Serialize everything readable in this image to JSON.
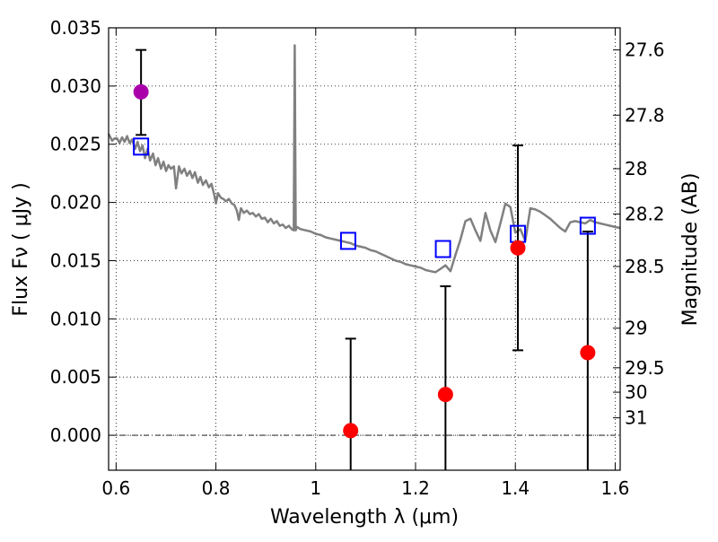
{
  "chart_data": {
    "type": "scatter",
    "xlabel": "Wavelength  λ (μm)",
    "ylabel": "Flux  Fν  ( μJy )",
    "ylabel_right": "Magnitude (AB)",
    "xlim": [
      0.585,
      1.61
    ],
    "ylim": [
      -0.003,
      0.035
    ],
    "grid": true,
    "x_ticks": [
      {
        "value": 0.6,
        "label": "0.6"
      },
      {
        "value": 0.8,
        "label": "0.8"
      },
      {
        "value": 1.0,
        "label": "1"
      },
      {
        "value": 1.2,
        "label": "1.2"
      },
      {
        "value": 1.4,
        "label": "1.4"
      },
      {
        "value": 1.6,
        "label": "1.6"
      }
    ],
    "y_ticks": [
      {
        "value": 0.0,
        "label": "0.000"
      },
      {
        "value": 0.005,
        "label": "0.005"
      },
      {
        "value": 0.01,
        "label": "0.010"
      },
      {
        "value": 0.015,
        "label": "0.015"
      },
      {
        "value": 0.02,
        "label": "0.020"
      },
      {
        "value": 0.025,
        "label": "0.025"
      },
      {
        "value": 0.03,
        "label": "0.030"
      },
      {
        "value": 0.035,
        "label": "0.035"
      }
    ],
    "right_ticks": [
      {
        "flux": 0.0331,
        "label": "27.6"
      },
      {
        "flux": 0.0275,
        "label": "27.8"
      },
      {
        "flux": 0.0229,
        "label": "28"
      },
      {
        "flux": 0.019,
        "label": "28.2"
      },
      {
        "flux": 0.0145,
        "label": "28.5"
      },
      {
        "flux": 0.0092,
        "label": "29"
      },
      {
        "flux": 0.0058,
        "label": "29.5"
      },
      {
        "flux": 0.0037,
        "label": "30"
      },
      {
        "flux": 0.0015,
        "label": "31"
      }
    ],
    "series": [
      {
        "type": "line",
        "color": "#808080",
        "points": [
          [
            0.585,
            0.0259
          ],
          [
            0.592,
            0.0253
          ],
          [
            0.597,
            0.0255
          ],
          [
            0.602,
            0.0255
          ],
          [
            0.607,
            0.0251
          ],
          [
            0.612,
            0.0256
          ],
          [
            0.617,
            0.0252
          ],
          [
            0.622,
            0.0257
          ],
          [
            0.627,
            0.0251
          ],
          [
            0.632,
            0.0254
          ],
          [
            0.638,
            0.0246
          ],
          [
            0.643,
            0.0252
          ],
          [
            0.648,
            0.0244
          ],
          [
            0.653,
            0.0249
          ],
          [
            0.658,
            0.0238
          ],
          [
            0.663,
            0.0246
          ],
          [
            0.668,
            0.0236
          ],
          [
            0.674,
            0.0242
          ],
          [
            0.679,
            0.0232
          ],
          [
            0.684,
            0.0238
          ],
          [
            0.69,
            0.0229
          ],
          [
            0.695,
            0.0235
          ],
          [
            0.7,
            0.0227
          ],
          [
            0.705,
            0.0232
          ],
          [
            0.71,
            0.0229
          ],
          [
            0.716,
            0.0231
          ],
          [
            0.72,
            0.0212
          ],
          [
            0.726,
            0.0231
          ],
          [
            0.731,
            0.0225
          ],
          [
            0.737,
            0.0229
          ],
          [
            0.742,
            0.0223
          ],
          [
            0.748,
            0.0227
          ],
          [
            0.753,
            0.0221
          ],
          [
            0.758,
            0.0226
          ],
          [
            0.764,
            0.0217
          ],
          [
            0.769,
            0.0222
          ],
          [
            0.774,
            0.0215
          ],
          [
            0.78,
            0.0219
          ],
          [
            0.786,
            0.0213
          ],
          [
            0.791,
            0.0216
          ],
          [
            0.797,
            0.0206
          ],
          [
            0.8,
            0.0199
          ],
          [
            0.804,
            0.0208
          ],
          [
            0.81,
            0.0204
          ],
          [
            0.815,
            0.0203
          ],
          [
            0.82,
            0.0201
          ],
          [
            0.826,
            0.0203
          ],
          [
            0.832,
            0.0199
          ],
          [
            0.837,
            0.0198
          ],
          [
            0.842,
            0.0193
          ],
          [
            0.846,
            0.0185
          ],
          [
            0.85,
            0.0195
          ],
          [
            0.856,
            0.0191
          ],
          [
            0.862,
            0.0193
          ],
          [
            0.868,
            0.019
          ],
          [
            0.874,
            0.0191
          ],
          [
            0.88,
            0.0188
          ],
          [
            0.886,
            0.019
          ],
          [
            0.892,
            0.0186
          ],
          [
            0.898,
            0.0187
          ],
          [
            0.904,
            0.0183
          ],
          [
            0.91,
            0.0186
          ],
          [
            0.916,
            0.0182
          ],
          [
            0.922,
            0.0184
          ],
          [
            0.928,
            0.018
          ],
          [
            0.934,
            0.0181
          ],
          [
            0.94,
            0.0178
          ],
          [
            0.946,
            0.018
          ],
          [
            0.952,
            0.0177
          ],
          [
            0.956,
            0.0176
          ],
          [
            0.958,
            0.0335
          ],
          [
            0.96,
            0.0176
          ],
          [
            0.962,
            0.0179
          ],
          [
            0.97,
            0.0177
          ],
          [
            0.98,
            0.0176
          ],
          [
            0.99,
            0.0175
          ],
          [
            1.0,
            0.0173
          ],
          [
            1.01,
            0.0172
          ],
          [
            1.02,
            0.017
          ],
          [
            1.03,
            0.0169
          ],
          [
            1.04,
            0.0168
          ],
          [
            1.05,
            0.0167
          ],
          [
            1.06,
            0.0166
          ],
          [
            1.07,
            0.0165
          ],
          [
            1.08,
            0.0163
          ],
          [
            1.09,
            0.0162
          ],
          [
            1.1,
            0.0161
          ],
          [
            1.11,
            0.0159
          ],
          [
            1.12,
            0.0158
          ],
          [
            1.13,
            0.0156
          ],
          [
            1.14,
            0.0154
          ],
          [
            1.15,
            0.0152
          ],
          [
            1.16,
            0.015
          ],
          [
            1.17,
            0.0149
          ],
          [
            1.18,
            0.0147
          ],
          [
            1.19,
            0.0146
          ],
          [
            1.2,
            0.0145
          ],
          [
            1.21,
            0.0144
          ],
          [
            1.22,
            0.0142
          ],
          [
            1.23,
            0.0141
          ],
          [
            1.24,
            0.014
          ],
          [
            1.25,
            0.0143
          ],
          [
            1.26,
            0.0146
          ],
          [
            1.27,
            0.0141
          ],
          [
            1.28,
            0.0155
          ],
          [
            1.29,
            0.0168
          ],
          [
            1.3,
            0.0184
          ],
          [
            1.31,
            0.0186
          ],
          [
            1.32,
            0.0176
          ],
          [
            1.33,
            0.0167
          ],
          [
            1.34,
            0.0191
          ],
          [
            1.35,
            0.0176
          ],
          [
            1.36,
            0.0166
          ],
          [
            1.37,
            0.0182
          ],
          [
            1.38,
            0.0199
          ],
          [
            1.39,
            0.0196
          ],
          [
            1.4,
            0.0174
          ],
          [
            1.41,
            0.0177
          ],
          [
            1.42,
            0.0167
          ],
          [
            1.43,
            0.0195
          ],
          [
            1.44,
            0.0194
          ],
          [
            1.45,
            0.0192
          ],
          [
            1.46,
            0.0189
          ],
          [
            1.47,
            0.0186
          ],
          [
            1.48,
            0.0182
          ],
          [
            1.49,
            0.0178
          ],
          [
            1.5,
            0.0175
          ],
          [
            1.51,
            0.0183
          ],
          [
            1.52,
            0.0184
          ],
          [
            1.53,
            0.0183
          ],
          [
            1.54,
            0.0182
          ],
          [
            1.55,
            0.0185
          ],
          [
            1.56,
            0.0183
          ],
          [
            1.57,
            0.0182
          ],
          [
            1.58,
            0.0181
          ],
          [
            1.59,
            0.018
          ],
          [
            1.6,
            0.0179
          ],
          [
            1.61,
            0.0178
          ]
        ]
      },
      {
        "type": "markers",
        "marker": "open-square",
        "color": "#0000ff",
        "points": [
          [
            0.65,
            0.0248
          ],
          [
            1.065,
            0.0167
          ],
          [
            1.255,
            0.016
          ],
          [
            1.405,
            0.0173
          ],
          [
            1.545,
            0.018
          ]
        ]
      },
      {
        "type": "markers",
        "marker": "circle",
        "color": "#ff0000",
        "points": [
          {
            "x": 1.07,
            "y": 0.0004,
            "ylo": -0.003,
            "yhi": 0.0083
          },
          {
            "x": 1.26,
            "y": 0.0035,
            "ylo": -0.003,
            "yhi": 0.0128
          },
          {
            "x": 1.405,
            "y": 0.0161,
            "ylo": 0.0073,
            "yhi": 0.0249
          },
          {
            "x": 1.545,
            "y": 0.0071,
            "ylo": -0.003,
            "yhi": 0.0175
          }
        ]
      },
      {
        "type": "markers",
        "marker": "circle",
        "color": "#aa00aa",
        "points": [
          {
            "x": 0.65,
            "y": 0.0295,
            "ylo": 0.0258,
            "yhi": 0.0331
          }
        ]
      }
    ]
  }
}
